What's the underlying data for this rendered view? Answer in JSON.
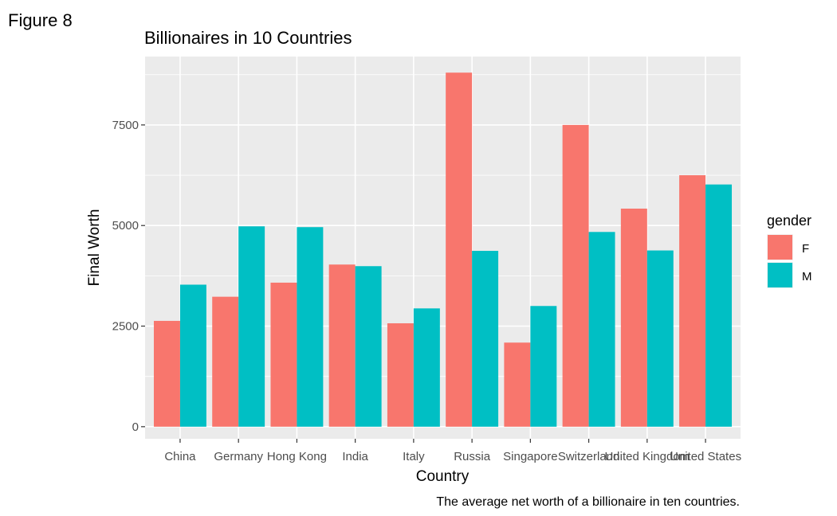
{
  "figure_label": "Figure 8",
  "chart_data": {
    "type": "bar",
    "title": "Billionaires in 10 Countries",
    "xlabel": "Country",
    "ylabel": "Final Worth",
    "caption": "The average net worth of a billionaire in ten countries.",
    "categories": [
      "China",
      "Germany",
      "Hong Kong",
      "India",
      "Italy",
      "Russia",
      "Singapore",
      "Switzerland",
      "United Kingdom",
      "United States"
    ],
    "series": [
      {
        "name": "F",
        "color": "#F8766D",
        "values": [
          2630,
          3230,
          3580,
          4030,
          2570,
          8800,
          2090,
          7500,
          5420,
          6250
        ]
      },
      {
        "name": "M",
        "color": "#00BFC4",
        "values": [
          3530,
          4980,
          4960,
          3990,
          2940,
          4370,
          3000,
          4840,
          4380,
          6020
        ]
      }
    ],
    "ylim": [
      -300,
      9200
    ],
    "yticks": [
      0,
      2500,
      5000,
      7500
    ],
    "ytick_labels": [
      "0",
      "2500",
      "5000",
      "7500"
    ],
    "legend_title": "gender",
    "legend_position": "right",
    "grid": true,
    "panel_color": "#EBEBEB"
  }
}
